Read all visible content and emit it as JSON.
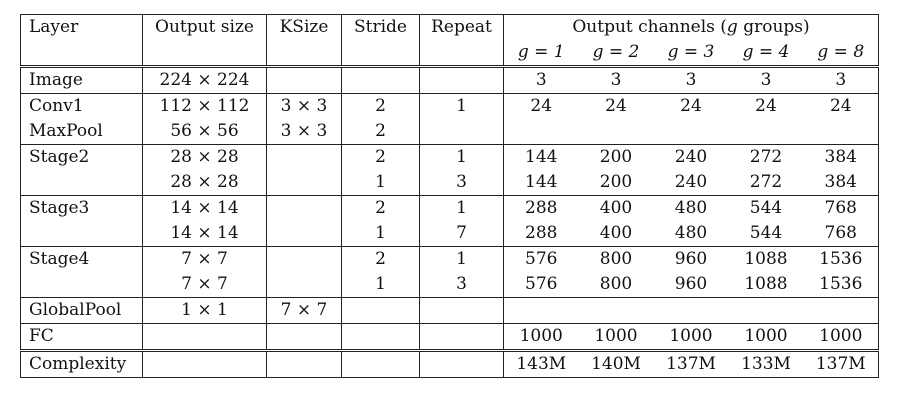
{
  "header": {
    "layer": "Layer",
    "output_size": "Output size",
    "ksize": "KSize",
    "stride": "Stride",
    "repeat": "Repeat",
    "channels_prefix": "Output channels (",
    "channels_g": "g",
    "channels_suffix": " groups)",
    "groups": [
      "g = 1",
      "g = 2",
      "g = 3",
      "g = 4",
      "g = 8"
    ]
  },
  "rows": [
    {
      "layer": "Image",
      "size": "224 × 224",
      "ksize": "",
      "stride": "",
      "repeat": "",
      "ch": [
        "3",
        "3",
        "3",
        "3",
        "3"
      ]
    },
    {
      "layer": "Conv1",
      "size": "112 × 112",
      "ksize": "3 × 3",
      "stride": "2",
      "repeat": "1",
      "ch": [
        "24",
        "24",
        "24",
        "24",
        "24"
      ]
    },
    {
      "layer": "MaxPool",
      "size": "56 × 56",
      "ksize": "3 × 3",
      "stride": "2",
      "repeat": "",
      "ch": [
        "",
        "",
        "",
        "",
        ""
      ]
    },
    {
      "layer": "Stage2",
      "size": "28 × 28",
      "ksize": "",
      "stride": "2",
      "repeat": "1",
      "ch": [
        "144",
        "200",
        "240",
        "272",
        "384"
      ]
    },
    {
      "layer": "",
      "size": "28 × 28",
      "ksize": "",
      "stride": "1",
      "repeat": "3",
      "ch": [
        "144",
        "200",
        "240",
        "272",
        "384"
      ]
    },
    {
      "layer": "Stage3",
      "size": "14 × 14",
      "ksize": "",
      "stride": "2",
      "repeat": "1",
      "ch": [
        "288",
        "400",
        "480",
        "544",
        "768"
      ]
    },
    {
      "layer": "",
      "size": "14 × 14",
      "ksize": "",
      "stride": "1",
      "repeat": "7",
      "ch": [
        "288",
        "400",
        "480",
        "544",
        "768"
      ]
    },
    {
      "layer": "Stage4",
      "size": "7 × 7",
      "ksize": "",
      "stride": "2",
      "repeat": "1",
      "ch": [
        "576",
        "800",
        "960",
        "1088",
        "1536"
      ]
    },
    {
      "layer": "",
      "size": "7 × 7",
      "ksize": "",
      "stride": "1",
      "repeat": "3",
      "ch": [
        "576",
        "800",
        "960",
        "1088",
        "1536"
      ]
    },
    {
      "layer": "GlobalPool",
      "size": "1 × 1",
      "ksize": "7 × 7",
      "stride": "",
      "repeat": "",
      "ch": [
        "",
        "",
        "",
        "",
        ""
      ]
    },
    {
      "layer": "FC",
      "size": "",
      "ksize": "",
      "stride": "",
      "repeat": "",
      "ch": [
        "1000",
        "1000",
        "1000",
        "1000",
        "1000"
      ]
    },
    {
      "layer": "Complexity",
      "size": "",
      "ksize": "",
      "stride": "",
      "repeat": "",
      "ch": [
        "143M",
        "140M",
        "137M",
        "133M",
        "137M"
      ]
    }
  ]
}
